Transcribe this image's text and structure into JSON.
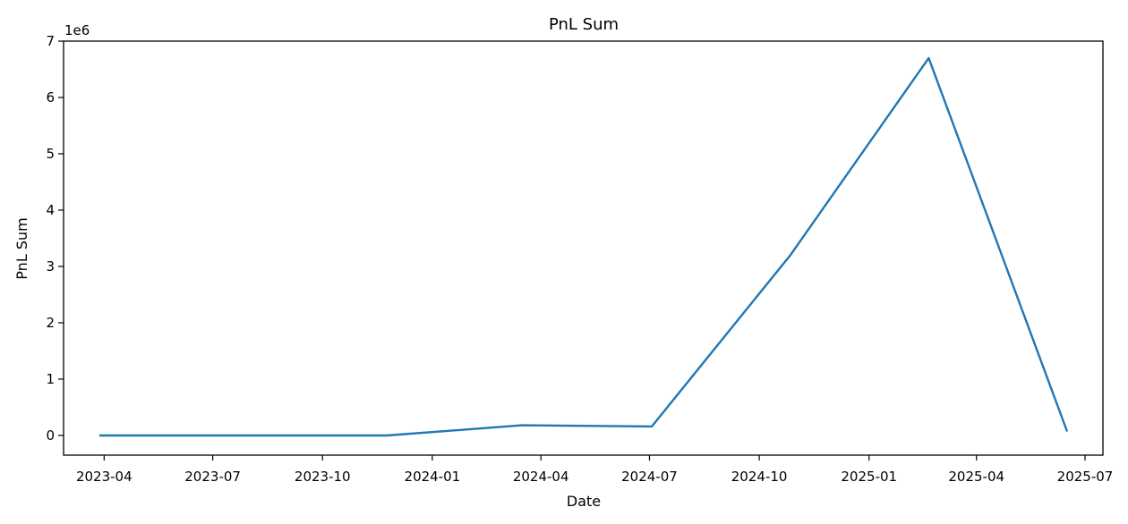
{
  "chart_data": {
    "type": "line",
    "title": "PnL Sum",
    "xlabel": "Date",
    "ylabel": "PnL Sum",
    "y_offset_label": "1e6",
    "y_scale": 1000000,
    "xlim": [
      "2023-02-26",
      "2025-07-16"
    ],
    "ylim": [
      -350000,
      7000000
    ],
    "x_ticks": [
      "2023-04-01",
      "2023-07-01",
      "2023-10-01",
      "2024-01-01",
      "2024-04-01",
      "2024-07-01",
      "2024-10-01",
      "2025-01-01",
      "2025-04-01",
      "2025-07-01"
    ],
    "x_tick_labels": [
      "2023-04",
      "2023-07",
      "2023-10",
      "2024-01",
      "2024-04",
      "2024-07",
      "2024-10",
      "2025-01",
      "2025-04",
      "2025-07"
    ],
    "y_ticks": [
      0,
      1000000,
      2000000,
      3000000,
      4000000,
      5000000,
      6000000,
      7000000
    ],
    "y_tick_labels": [
      "0",
      "1",
      "2",
      "3",
      "4",
      "5",
      "6",
      "7"
    ],
    "grid": false,
    "series": [
      {
        "color": "#1f77b4",
        "x": [
          "2023-03-28",
          "2023-11-24",
          "2024-03-16",
          "2024-07-03",
          "2024-10-27",
          "2025-02-20",
          "2025-06-16"
        ],
        "y": [
          0,
          0,
          180000,
          160000,
          3200000,
          6700000,
          70000
        ]
      }
    ]
  }
}
